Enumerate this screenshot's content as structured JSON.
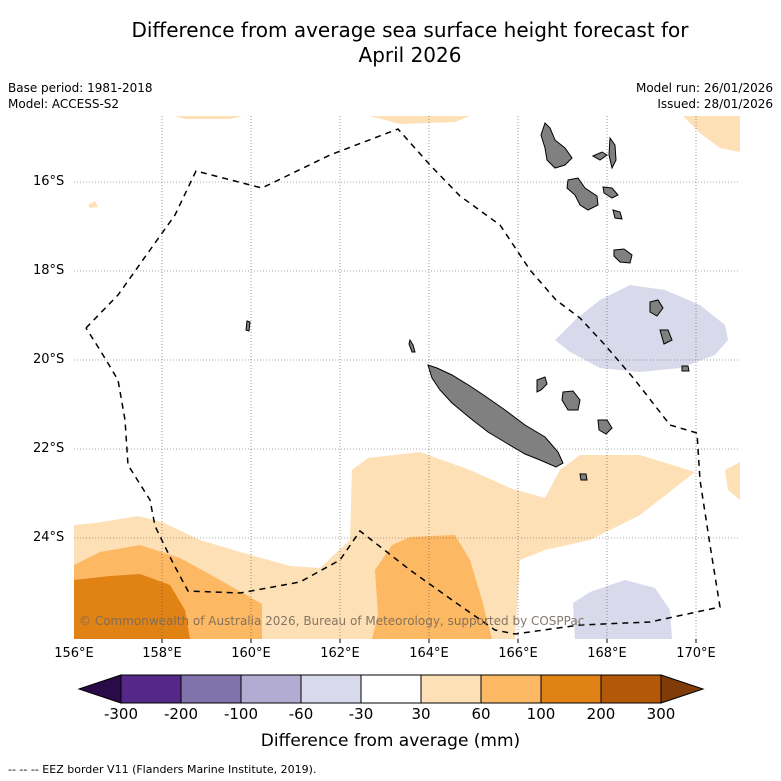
{
  "title_line1": "Difference from average sea surface height forecast for",
  "title_line2": "April 2026",
  "base_period": "Base period: 1981-2018",
  "model": "Model: ACCESS-S2",
  "model_run": "Model run: 26/01/2026",
  "issued": "Issued: 28/01/2026",
  "copyright": "© Commonwealth of Australia 2026, Bureau of Meteorology, supported by COSPPac",
  "footnote": "-- -- -- EEZ border V11 (Flanders Marine Institute, 2019).",
  "lat_labels": [
    "16°S",
    "18°S",
    "20°S",
    "22°S",
    "24°S"
  ],
  "lon_labels": [
    "156°E",
    "158°E",
    "160°E",
    "162°E",
    "164°E",
    "166°E",
    "168°E",
    "170°E"
  ],
  "colorbar": {
    "title": "Difference from average (mm)",
    "ticks": [
      "-300",
      "-200",
      "-100",
      "-60",
      "-30",
      "30",
      "60",
      "100",
      "200",
      "300"
    ],
    "colors": {
      "below_-300": "#2b0a4a",
      "-300_-200": "#542788",
      "-200_-100": "#8073ac",
      "-100_-60": "#b2abd2",
      "-60_-30": "#d8daeb",
      "-30_30": "#ffffff",
      "30_60": "#fee0b6",
      "60_100": "#fdb863",
      "100_200": "#e08214",
      "200_300": "#b35806",
      "above_300": "#7f3b08"
    }
  },
  "land_color": "#808080",
  "eez_style": "dashed black line"
}
